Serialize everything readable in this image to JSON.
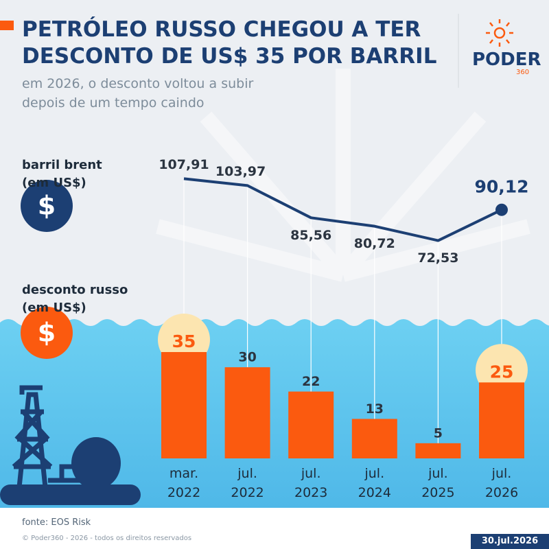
{
  "chart_data": {
    "type": "bar-line",
    "title": "PETRÓLEO RUSSO CHEGOU A TER\nDESCONTO DE US$ 35 POR BARRIL",
    "subtitle": "em 2026, o desconto voltou a subir\ndepois de um tempo caindo",
    "categories": [
      "mar.\n2022",
      "jul.\n2022",
      "jul.\n2023",
      "jul.\n2024",
      "jul.\n2025",
      "jul.\n2026"
    ],
    "series": [
      {
        "name": "barril brent\n(em US$)",
        "symbol": "$",
        "type": "line",
        "axis": "y2",
        "color": "#1c3f73",
        "values": [
          107.91,
          103.97,
          85.56,
          80.72,
          72.53,
          90.12
        ],
        "value_labels": [
          "107,91",
          "103,97",
          "85,56",
          "80,72",
          "72,53",
          "90,12"
        ]
      },
      {
        "name": "desconto russo\n(em US$)",
        "symbol": "$",
        "type": "bar",
        "color": "#fb5a0f",
        "values": [
          35,
          30,
          22,
          13,
          5,
          25
        ]
      }
    ],
    "ylim": [
      0,
      35
    ],
    "y2lim": [
      70,
      110
    ],
    "source": "fonte: EOS Risk",
    "copyright": "© Poder360 - 2026 - todos os direitos reservados",
    "date": "30.jul.2026",
    "logo": {
      "name": "PODER",
      "number": "360"
    }
  }
}
